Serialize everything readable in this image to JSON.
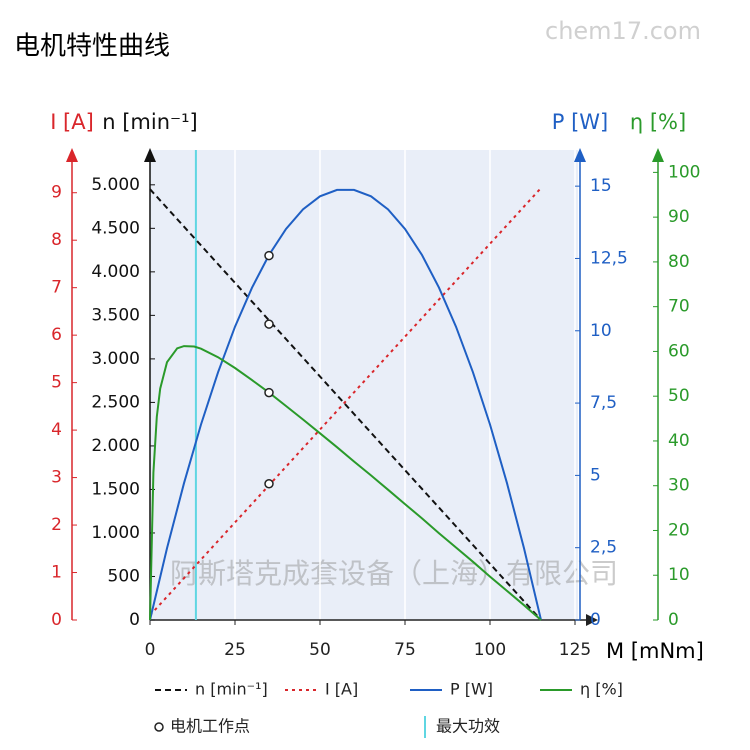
{
  "chart_data": {
    "type": "line",
    "title": "电机特性曲线",
    "watermarks": [
      "chem17.com",
      "阿斯塔克成套设备（上海）有限公司"
    ],
    "x_title": "M [mNm]",
    "xlim": [
      0,
      125
    ],
    "xticks": [
      0,
      25,
      50,
      75,
      100,
      125
    ],
    "grid": "x",
    "axes": {
      "I": {
        "title": "I [A]",
        "color": "#d9262b",
        "ylim": [
          0,
          9.9
        ],
        "yticks": [
          0,
          1,
          2,
          3,
          4,
          5,
          6,
          7,
          8,
          9
        ]
      },
      "n": {
        "title": "n [min⁻¹]",
        "color": "#111111",
        "ylim": [
          0,
          5400
        ],
        "yticks": [
          0,
          500,
          {
            "value": 1000,
            "label": "1.000"
          },
          {
            "value": 1500,
            "label": "1.500"
          },
          {
            "value": 2000,
            "label": "2.000"
          },
          {
            "value": 2500,
            "label": "2.500"
          },
          {
            "value": 3000,
            "label": "3.000"
          },
          {
            "value": 3500,
            "label": "3.500"
          },
          {
            "value": 4000,
            "label": "4.000"
          },
          {
            "value": 4500,
            "label": "4.500"
          },
          {
            "value": 5000,
            "label": "5.000"
          }
        ]
      },
      "P": {
        "title": "P [W]",
        "color": "#1f5fc4",
        "ylim": [
          0,
          16.25
        ],
        "yticks": [
          0,
          {
            "value": 2.5,
            "label": "2,5"
          },
          5,
          {
            "value": 7.5,
            "label": "7,5"
          },
          10,
          {
            "value": 12.5,
            "label": "12,5"
          },
          15
        ]
      },
      "eta": {
        "title": "η [%]",
        "color": "#2a9a2a",
        "ylim": [
          0,
          105
        ],
        "yticks": [
          0,
          10,
          20,
          30,
          40,
          50,
          60,
          70,
          80,
          90,
          100
        ]
      }
    },
    "series": [
      {
        "name": "n [min⁻¹]",
        "color": "#111111",
        "axis": "n",
        "dash": "dashed",
        "x": [
          0,
          115
        ],
        "values": [
          4950,
          0
        ]
      },
      {
        "name": "I [A]",
        "color": "#d9262b",
        "axis": "I",
        "dash": "dotted",
        "x": [
          0,
          115
        ],
        "values": [
          0.1,
          9.1
        ]
      },
      {
        "name": "P [W]",
        "color": "#1f5fc4",
        "axis": "P",
        "dash": "solid",
        "x": [
          0,
          5,
          10,
          15,
          20,
          25,
          30,
          35,
          40,
          45,
          50,
          55,
          60,
          65,
          70,
          75,
          80,
          85,
          90,
          95,
          100,
          105,
          110,
          115
        ],
        "values": [
          0,
          2.48,
          4.73,
          6.76,
          8.56,
          10.14,
          11.49,
          12.62,
          13.52,
          14.2,
          14.65,
          14.87,
          14.87,
          14.65,
          14.2,
          13.52,
          12.62,
          11.49,
          10.14,
          8.56,
          6.76,
          4.73,
          2.48,
          0
        ]
      },
      {
        "name": "η [%]",
        "color": "#2a9a2a",
        "axis": "eta",
        "dash": "solid",
        "x": [
          0,
          1,
          2,
          3,
          5,
          8,
          10,
          13,
          15,
          20,
          25,
          30,
          35,
          40,
          45,
          50,
          55,
          60,
          65,
          70,
          75,
          80,
          85,
          90,
          95,
          100,
          105,
          110,
          115
        ],
        "values": [
          0,
          32.9,
          45.4,
          51.7,
          57.6,
          60.7,
          61.2,
          61.1,
          60.6,
          58.7,
          56.3,
          53.6,
          50.8,
          47.8,
          44.8,
          41.7,
          38.6,
          35.4,
          32.3,
          29.1,
          25.9,
          22.7,
          19.4,
          16.2,
          13.0,
          9.7,
          6.5,
          3.3,
          0
        ]
      }
    ],
    "operating_points": {
      "name": "电机工作点",
      "x": 35,
      "values": [
        3400,
        2.87,
        12.6,
        50.8
      ]
    },
    "max_efficiency": {
      "name": "最大功效",
      "x": 13.5,
      "color": "#5fd6e2"
    }
  }
}
